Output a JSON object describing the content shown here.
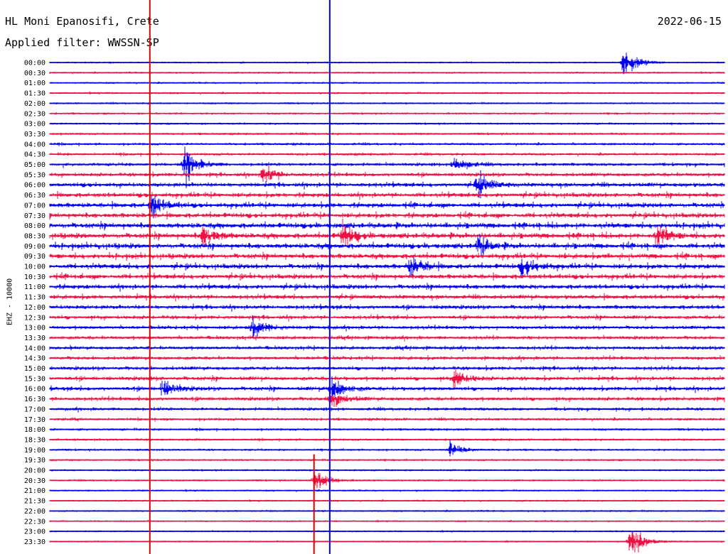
{
  "header": {
    "station": "HL Moni Epanosifi, Crete",
    "date": "2022-06-15",
    "filter": "Applied filter: WWSSN-SP"
  },
  "chart_data": {
    "type": "line",
    "title": "HL Moni Epanosifi, Crete",
    "ylabel": "EHZ - 10000",
    "row_labels": [
      "00:00",
      "00:30",
      "01:00",
      "01:30",
      "02:00",
      "02:30",
      "03:00",
      "03:30",
      "04:00",
      "04:30",
      "05:00",
      "05:30",
      "06:00",
      "06:30",
      "07:00",
      "07:30",
      "08:00",
      "08:30",
      "09:00",
      "09:30",
      "10:00",
      "10:30",
      "11:00",
      "11:30",
      "12:00",
      "12:30",
      "13:00",
      "13:30",
      "14:00",
      "14:30",
      "15:00",
      "15:30",
      "16:00",
      "16:30",
      "17:00",
      "17:30",
      "18:00",
      "18:30",
      "19:00",
      "19:30",
      "20:00",
      "20:30",
      "21:00",
      "21:30",
      "22:00",
      "22:30",
      "23:00",
      "23:30"
    ],
    "row_minutes": 30,
    "row_activity": [
      0.8,
      0.9,
      0.9,
      1.0,
      1.0,
      1.1,
      1.1,
      1.3,
      1.5,
      1.6,
      2.0,
      2.4,
      2.8,
      3.0,
      3.2,
      3.3,
      3.6,
      3.6,
      3.5,
      3.4,
      3.3,
      3.2,
      3.0,
      2.8,
      2.7,
      2.5,
      2.3,
      2.2,
      2.2,
      2.3,
      2.4,
      2.6,
      2.6,
      2.4,
      2.0,
      1.7,
      1.4,
      1.3,
      1.2,
      1.1,
      1.0,
      1.0,
      0.9,
      0.9,
      0.9,
      0.8,
      0.8,
      0.8
    ],
    "colors": [
      "#0000ee",
      "#ee1144"
    ],
    "vertical_marker_color": "#dd0000",
    "events": [
      {
        "row": 0,
        "minute": 25.5,
        "amp": 3.0,
        "color": "#0000ee"
      },
      {
        "row": 10,
        "minute": 6.0,
        "amp": 3.0,
        "color": "#0000ee"
      },
      {
        "row": 10,
        "minute": 18.0,
        "amp": 1.6,
        "color": "#0000ee"
      },
      {
        "row": 11,
        "minute": 9.5,
        "amp": 1.8,
        "color": "#ee1144"
      },
      {
        "row": 12,
        "minute": 19.0,
        "amp": 2.2,
        "color": "#0000ee"
      },
      {
        "row": 14,
        "minute": 4.5,
        "amp": 2.0,
        "color": "#ee1144"
      },
      {
        "row": 17,
        "minute": 6.8,
        "amp": 2.0,
        "color": "#0000ee"
      },
      {
        "row": 17,
        "minute": 13.0,
        "amp": 2.4,
        "color": "#0000ee"
      },
      {
        "row": 17,
        "minute": 27.0,
        "amp": 2.0,
        "color": "#0000ee"
      },
      {
        "row": 18,
        "minute": 19.0,
        "amp": 1.8,
        "color": "#0000ee"
      },
      {
        "row": 20,
        "minute": 16.0,
        "amp": 2.2,
        "color": "#ee1144"
      },
      {
        "row": 20,
        "minute": 21.0,
        "amp": 2.2,
        "color": "#ee1144"
      },
      {
        "row": 26,
        "minute": 9.0,
        "amp": 2.0,
        "color": "#0000ee"
      },
      {
        "row": 31,
        "minute": 18.0,
        "amp": 1.6,
        "color": "#ee1144"
      },
      {
        "row": 32,
        "minute": 5.0,
        "amp": 1.6,
        "color": "#0000ee"
      },
      {
        "row": 32,
        "minute": 12.5,
        "amp": 2.2,
        "color": "#0000ee"
      },
      {
        "row": 33,
        "minute": 12.5,
        "amp": 1.8,
        "color": "#ee1144"
      },
      {
        "row": 38,
        "minute": 17.8,
        "amp": 1.4,
        "color": "#0000ee"
      },
      {
        "row": 41,
        "minute": 11.8,
        "amp": 2.2,
        "color": "#ee1144"
      },
      {
        "row": 47,
        "minute": 25.8,
        "amp": 3.0,
        "color": "#ee1144"
      }
    ],
    "vertical_markers": [
      {
        "minute": 4.45,
        "color": "#dd0000",
        "from_row": 0,
        "to_row": 47
      },
      {
        "minute": 11.75,
        "color": "#dd0000",
        "from_row": 39,
        "to_row": 47
      },
      {
        "minute": 12.45,
        "color": "#0000ee",
        "from_row": 0,
        "to_row": 47
      }
    ],
    "grid": false
  }
}
